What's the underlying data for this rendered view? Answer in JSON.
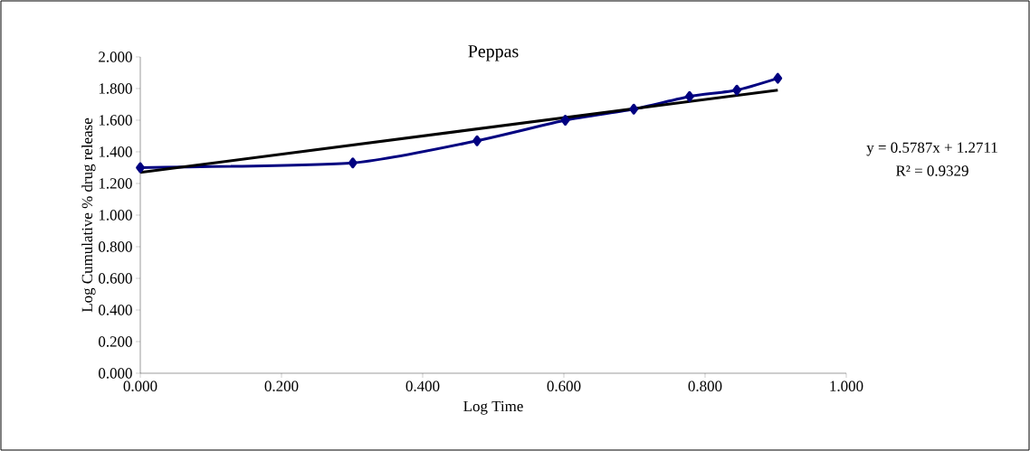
{
  "chart_data": {
    "type": "line",
    "title": "Peppas",
    "xlabel": "Log Time",
    "ylabel": "Log Cumulative % drug release",
    "x": [
      0,
      0.301,
      0.477,
      0.602,
      0.699,
      0.778,
      0.845,
      0.903
    ],
    "series": [
      {
        "color": "#000080",
        "values": [
          1.3,
          1.33,
          1.47,
          1.6,
          1.67,
          1.75,
          1.79,
          1.865
        ],
        "marker": "diamond"
      },
      {
        "type": "line",
        "color": "#000000",
        "x": [
          0,
          0.903
        ],
        "values": [
          1.27,
          1.79
        ],
        "marker": "none"
      }
    ],
    "xlim": [
      0,
      1
    ],
    "ylim": [
      0,
      2
    ],
    "xticks": [
      {
        "value": 0,
        "label": "0.000"
      },
      {
        "value": 0.2,
        "label": "0.200"
      },
      {
        "value": 0.4,
        "label": "0.400"
      },
      {
        "value": 0.6,
        "label": "0.600"
      },
      {
        "value": 0.8,
        "label": "0.800"
      },
      {
        "value": 1,
        "label": "1.000"
      }
    ],
    "yticks": [
      {
        "value": 0,
        "label": "0.000"
      },
      {
        "value": 0.2,
        "label": "0.200"
      },
      {
        "value": 0.4,
        "label": "0.400"
      },
      {
        "value": 0.6,
        "label": "0.600"
      },
      {
        "value": 0.8,
        "label": "0.800"
      },
      {
        "value": 1,
        "label": "1.000"
      },
      {
        "value": 1.2,
        "label": "1.200"
      },
      {
        "value": 1.4,
        "label": "1.400"
      },
      {
        "value": 1.6,
        "label": "1.600"
      },
      {
        "value": 1.8,
        "label": "1.800"
      },
      {
        "value": 2,
        "label": "2.000"
      }
    ],
    "annotations": [
      "y = 0.5787x + 1.2711",
      "R² = 0.9329"
    ]
  }
}
